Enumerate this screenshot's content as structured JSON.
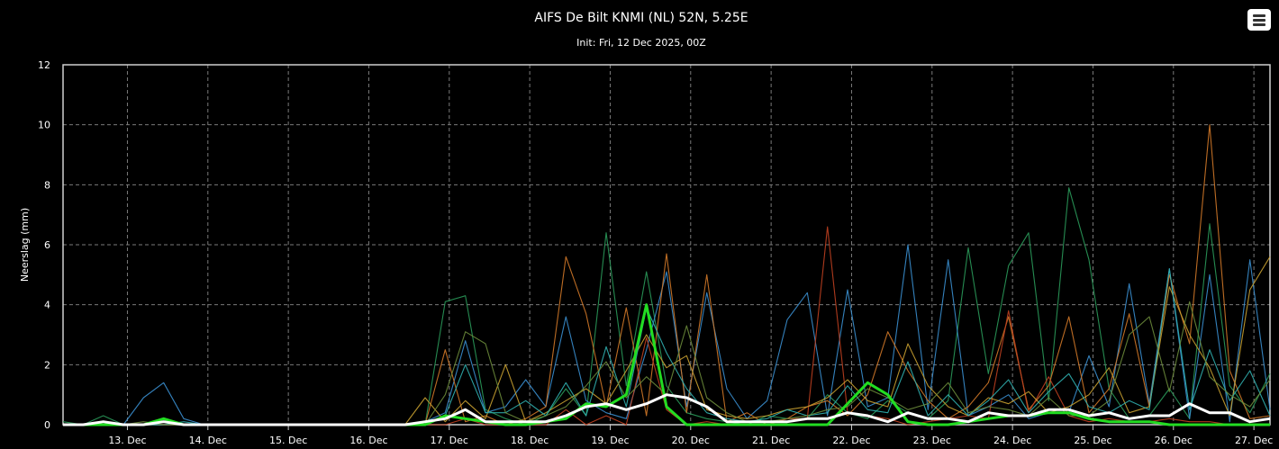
{
  "chart_data": {
    "type": "line",
    "title": "AIFS De Bilt KNMI (NL) 52N, 5.25E",
    "subtitle": "Init: Fri, 12 Dec 2025, 00Z",
    "xlabel": "",
    "ylabel": "Neerslag (mm)",
    "ylim": [
      0,
      12
    ],
    "yticks": [
      0,
      2,
      4,
      6,
      8,
      10,
      12
    ],
    "xticks": [
      "13. Dec",
      "14. Dec",
      "15. Dec",
      "16. Dec",
      "17. Dec",
      "18. Dec",
      "19. Dec",
      "20. Dec",
      "21. Dec",
      "22. Dec",
      "23. Dec",
      "24. Dec",
      "25. Dec",
      "26. Dec",
      "27. Dec"
    ],
    "x_start_day": 12.2,
    "x_end_day": 27.2,
    "x_step_hours": 6,
    "grid": true,
    "legend": "none",
    "series": [
      {
        "color": "#ffffff",
        "values": [
          0,
          0,
          0.1,
          0,
          0,
          0.1,
          0,
          0,
          0,
          0,
          0,
          0,
          0,
          0,
          0,
          0,
          0,
          0,
          0.1,
          0.2,
          0.5,
          0.1,
          0.1,
          0.1,
          0.1,
          0.3,
          0.6,
          0.7,
          0.5,
          0.7,
          1.0,
          0.9,
          0.6,
          0.1,
          0.1,
          0.1,
          0.1,
          0.2,
          0.2,
          0.4,
          0.3,
          0.1,
          0.4,
          0.2,
          0.2,
          0.1,
          0.4,
          0.3,
          0.3,
          0.5,
          0.5,
          0.3,
          0.4,
          0.2,
          0.3,
          0.3,
          0.7,
          0.4,
          0.4,
          0.1,
          0.2
        ]
      },
      {
        "color": "#22dd22",
        "values": [
          0,
          0,
          0,
          0,
          0,
          0.2,
          0,
          0,
          0,
          0,
          0,
          0,
          0,
          0,
          0,
          0,
          0,
          0,
          0,
          0.3,
          0.2,
          0.1,
          0,
          0,
          0.1,
          0.2,
          0.7,
          0.6,
          1.0,
          4.0,
          0.6,
          0,
          0,
          0,
          0,
          0,
          0,
          0,
          0,
          0.7,
          1.4,
          1.0,
          0.1,
          0,
          0,
          0.1,
          0.2,
          0.3,
          0.3,
          0.4,
          0.4,
          0.2,
          0.1,
          0.1,
          0.1,
          0,
          0,
          0,
          0,
          0,
          0
        ]
      },
      {
        "color": "#2a9a5a",
        "values": [
          0.1,
          0,
          0.3,
          0,
          0,
          0,
          0,
          0,
          0,
          0,
          0,
          0,
          0,
          0,
          0,
          0,
          0,
          0,
          0,
          4.1,
          4.3,
          0.5,
          0.2,
          0,
          0.3,
          1.2,
          0.3,
          6.4,
          1.3,
          5.1,
          1.3,
          0.4,
          0.2,
          0.1,
          0,
          0.3,
          0.2,
          0.2,
          1.0,
          0.4,
          0.2,
          0.8,
          0.4,
          0.2,
          0.8,
          5.9,
          1.7,
          5.3,
          6.4,
          0.8,
          7.9,
          5.5,
          1.2,
          0.2,
          0.3,
          1.2,
          0.2,
          6.7,
          1.3,
          0.4,
          1.7
        ]
      },
      {
        "color": "#3a8fd0",
        "values": [
          0,
          0,
          0,
          0,
          0.9,
          1.4,
          0.2,
          0,
          0,
          0,
          0,
          0,
          0,
          0,
          0,
          0,
          0,
          0,
          0.1,
          0.4,
          2.8,
          0.4,
          0.6,
          1.5,
          0.6,
          3.6,
          0.8,
          0.4,
          0.2,
          2.5,
          5.1,
          0.6,
          4.4,
          1.2,
          0.2,
          0.8,
          3.5,
          4.4,
          0.3,
          4.5,
          0.6,
          0.9,
          6.0,
          0.5,
          5.5,
          0.3,
          0.6,
          1.0,
          0.2,
          0.4,
          0.4,
          2.3,
          0.6,
          4.7,
          0.7,
          5.2,
          0.2,
          5.0,
          0.1,
          5.5,
          0.5
        ]
      },
      {
        "color": "#d07828",
        "values": [
          0,
          0,
          0,
          0,
          0,
          0,
          0,
          0,
          0,
          0,
          0,
          0,
          0,
          0,
          0,
          0,
          0,
          0,
          0,
          2.5,
          0.1,
          0.3,
          0,
          0.2,
          0.6,
          5.6,
          3.7,
          0.6,
          3.9,
          0.3,
          5.7,
          0.4,
          5.0,
          0.1,
          0.4,
          0,
          0.2,
          0.6,
          0.8,
          0.3,
          1.0,
          3.1,
          1.8,
          0.8,
          0.2,
          0.6,
          1.4,
          3.6,
          0.5,
          1.3,
          3.6,
          0.4,
          1.2,
          3.7,
          0.6,
          5.0,
          2.7,
          10.0,
          1.8,
          0.2,
          0.3
        ]
      },
      {
        "color": "#c04020",
        "values": [
          0,
          0,
          0,
          0,
          0,
          0,
          0,
          0,
          0,
          0,
          0,
          0,
          0,
          0,
          0,
          0,
          0,
          0,
          0,
          0,
          0.2,
          0,
          0,
          0,
          0,
          0.5,
          0,
          0.3,
          0,
          2.9,
          0.5,
          0,
          0.1,
          0,
          0,
          0,
          0.2,
          0.2,
          6.6,
          0.4,
          0.3,
          0.2,
          0,
          0.1,
          0.2,
          0.3,
          0.2,
          3.8,
          0.4,
          1.6,
          0.3,
          0.1,
          0.2,
          0.1,
          0.1,
          0.2,
          0.1,
          0.1,
          0,
          0,
          0
        ]
      },
      {
        "color": "#c8a030",
        "values": [
          0,
          0,
          0,
          0,
          0,
          0,
          0,
          0,
          0,
          0,
          0,
          0,
          0,
          0,
          0,
          0,
          0,
          0,
          0.9,
          0.1,
          0.8,
          0.2,
          2.0,
          0.1,
          0.4,
          0.8,
          1.2,
          0.7,
          1.8,
          3.0,
          1.9,
          2.3,
          0.5,
          0.3,
          0.2,
          0.3,
          0.5,
          0.6,
          0.9,
          1.5,
          0.8,
          0.6,
          2.7,
          1.3,
          0.6,
          0.3,
          0.9,
          0.7,
          1.1,
          0.4,
          0.6,
          1.0,
          1.9,
          0.4,
          0.6,
          4.6,
          3.0,
          1.9,
          0.3,
          4.5,
          5.6
        ]
      },
      {
        "color": "#30b0b0",
        "values": [
          0,
          0,
          0,
          0,
          0,
          0,
          0.1,
          0,
          0,
          0,
          0,
          0,
          0,
          0,
          0,
          0,
          0,
          0,
          0,
          0.3,
          2.0,
          0.4,
          0.4,
          0.8,
          0.3,
          1.4,
          0.3,
          2.6,
          0.6,
          3.9,
          2.4,
          1.2,
          0.4,
          0.2,
          0.1,
          0.2,
          0.5,
          0.3,
          0.4,
          1.3,
          0.5,
          0.4,
          2.1,
          0.3,
          1.0,
          0.3,
          0.8,
          1.5,
          0.4,
          1.1,
          1.7,
          0.6,
          0.4,
          0.8,
          0.5,
          5.2,
          0.5,
          2.5,
          0.8,
          1.8,
          0.3
        ]
      },
      {
        "color": "#6a8a3a",
        "values": [
          0,
          0,
          0,
          0,
          0.1,
          0,
          0,
          0,
          0,
          0,
          0,
          0,
          0,
          0,
          0,
          0,
          0,
          0,
          0,
          1.0,
          3.1,
          2.7,
          0.4,
          0.1,
          0.3,
          0.6,
          1.3,
          2.1,
          0.9,
          1.6,
          1.0,
          3.3,
          0.9,
          0.4,
          0.1,
          0.1,
          0.2,
          0.3,
          0.5,
          0.6,
          1.2,
          0.9,
          0.5,
          0.7,
          1.4,
          0.4,
          0.6,
          0.5,
          0.3,
          0.9,
          0.3,
          0.3,
          0.8,
          3.0,
          3.6,
          1.1,
          4.1,
          1.6,
          1.0,
          0.6,
          1.5
        ]
      }
    ]
  }
}
